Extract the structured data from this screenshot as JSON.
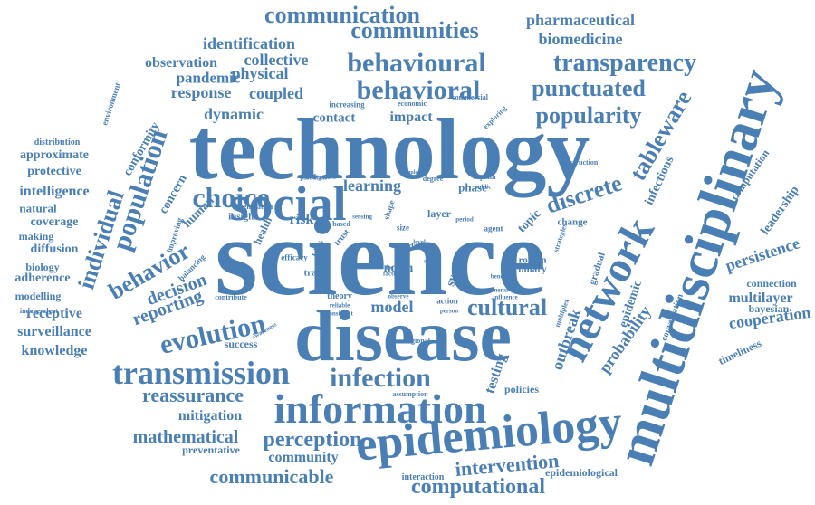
{
  "cloud": {
    "words": [
      "technology",
      "science",
      "disease",
      "multidisciplinary",
      "epidemiology",
      "network",
      "information",
      "social",
      "behavioural",
      "behavioral",
      "transparency",
      "transmission",
      "infection",
      "choice",
      "population",
      "evolution",
      "communication",
      "communities",
      "punctuated",
      "popularity",
      "discrete",
      "individual",
      "behavior",
      "cultural",
      "pharmaceutical",
      "biomedicine",
      "identification",
      "collective",
      "observation",
      "pandemic",
      "physical",
      "response",
      "coupled",
      "dynamic",
      "contact",
      "impact",
      "tableware",
      "reassurance",
      "perception",
      "mathematical",
      "communicable",
      "computational",
      "intervention",
      "cooperation",
      "persistence",
      "leadership",
      "computation",
      "multilayer",
      "connection",
      "bayesian",
      "timeliness",
      "outbreak",
      "probability",
      "epidemic",
      "testing",
      "policies",
      "reporting",
      "decision",
      "learning",
      "model",
      "norm",
      "risk",
      "system",
      "topic",
      "human",
      "concern",
      "conformity",
      "intelligence",
      "approximate",
      "protective",
      "natural",
      "coverage",
      "making",
      "diffusion",
      "biology",
      "adherence",
      "modelling",
      "receptive",
      "surveillance",
      "knowledge",
      "mitigation",
      "preventative",
      "community",
      "success",
      "infectious",
      "insight",
      "health",
      "trade",
      "bias",
      "roman",
      "binary",
      "gradual",
      "change",
      "phase",
      "layer",
      "size",
      "data",
      "agent",
      "distribution",
      "environment",
      "independent",
      "increasing",
      "economic",
      "commercial",
      "exploring",
      "construction",
      "conversation",
      "multiplex",
      "regional",
      "assumption",
      "interaction",
      "epidemiological",
      "improving",
      "balancing",
      "contribute",
      "awareness",
      "theory",
      "reliable",
      "consistent",
      "action",
      "observe",
      "person",
      "generation",
      "paradigm",
      "efficacy",
      "difference",
      "explain",
      "public",
      "adoption",
      "strategies",
      "trust",
      "shape",
      "factor",
      "focus",
      "based",
      "degree",
      "sample",
      "sensing",
      "period",
      "benefit",
      "general",
      "influence",
      "cost",
      "level"
    ]
  }
}
